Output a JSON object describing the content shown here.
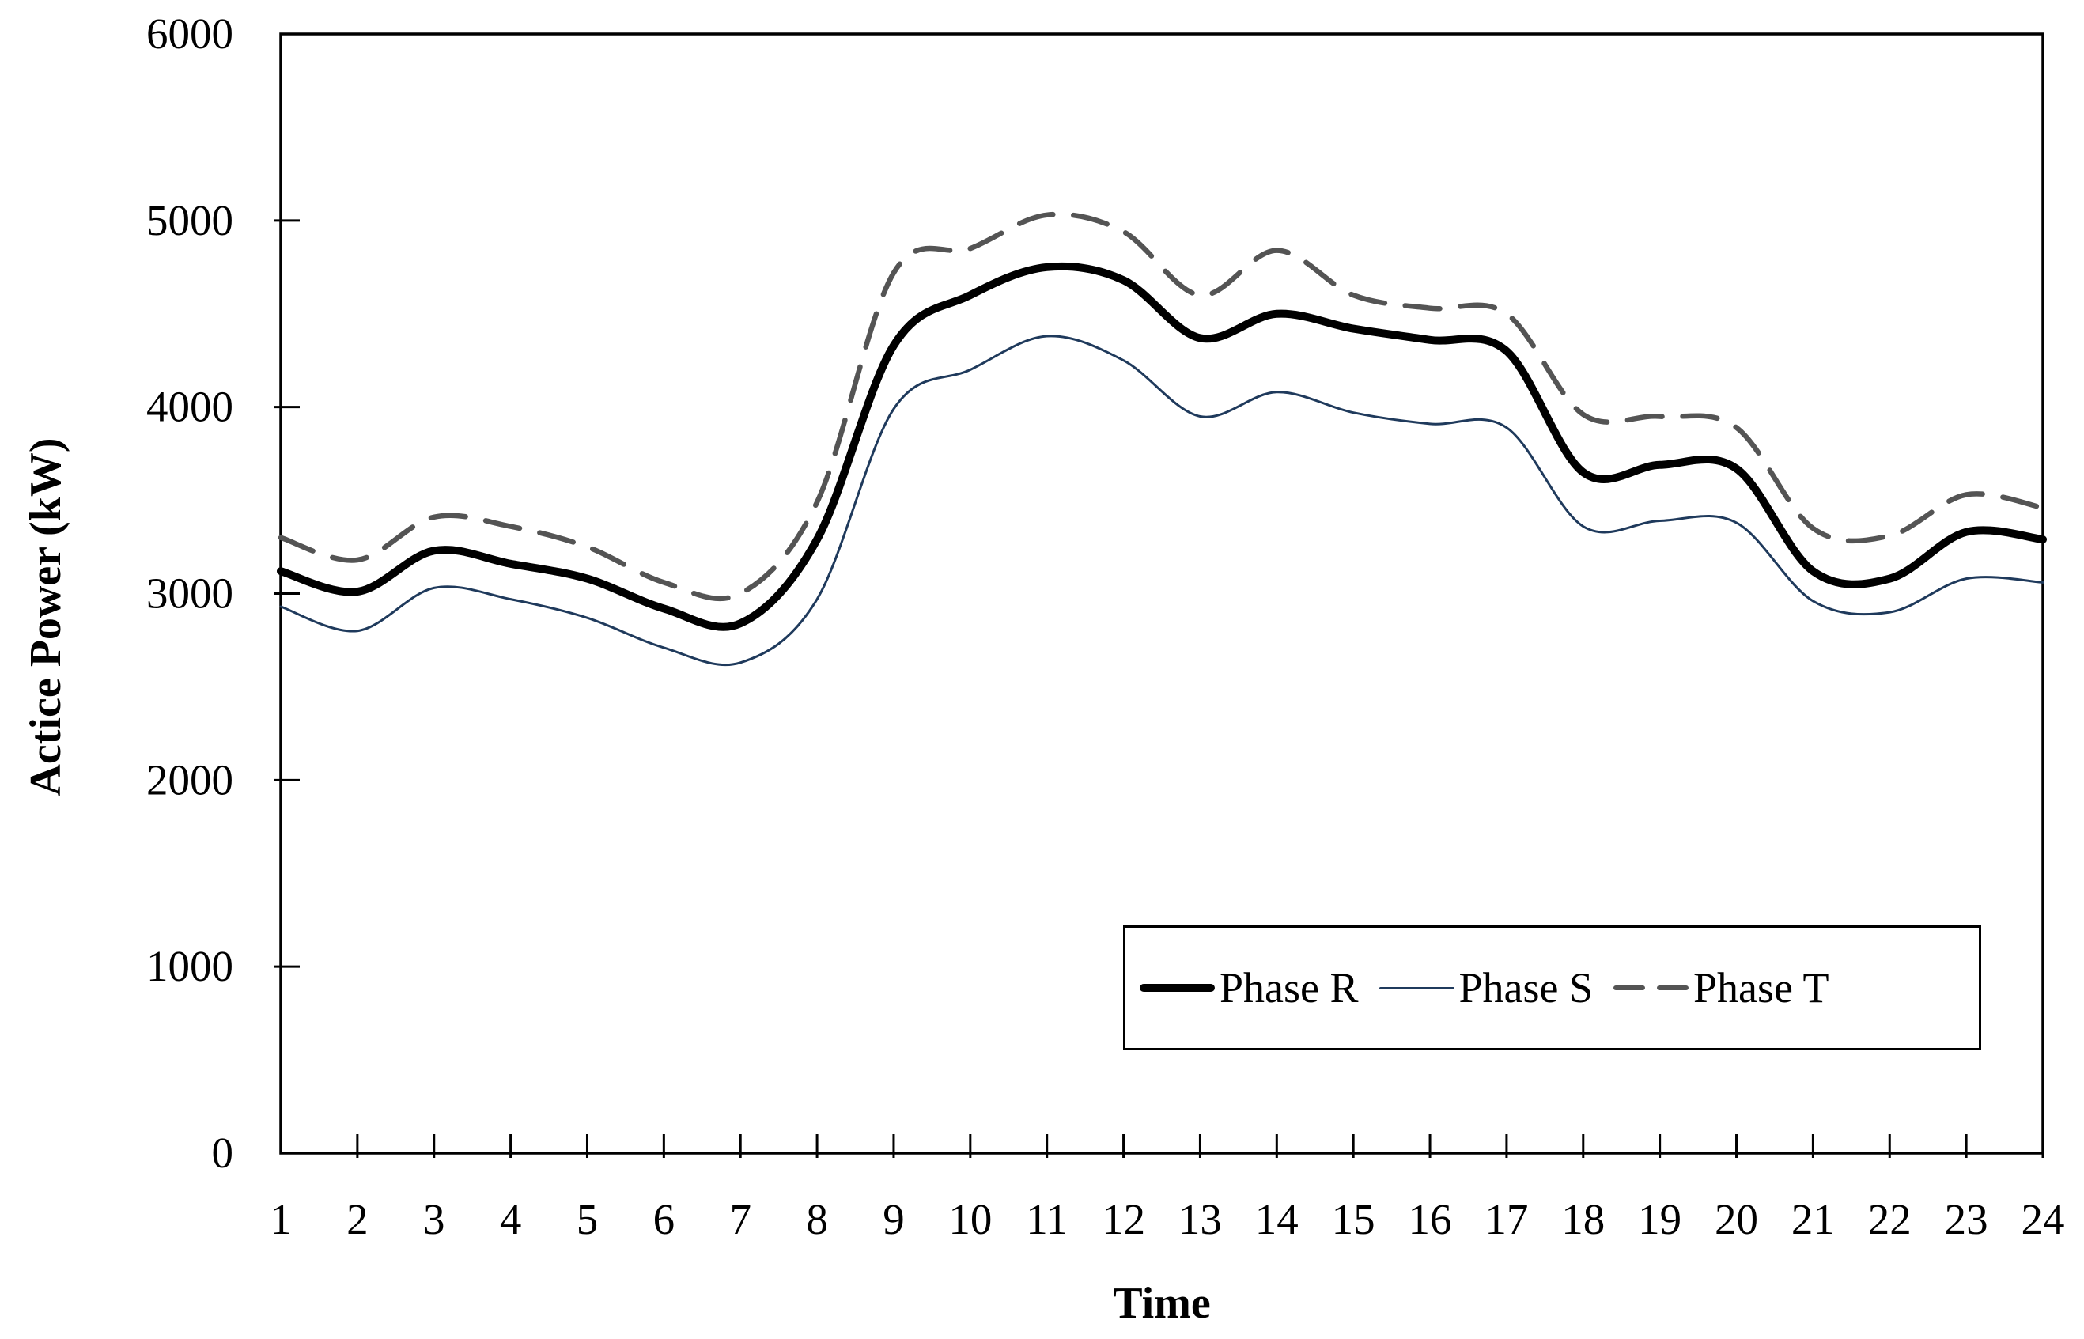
{
  "chart_data": {
    "type": "line",
    "title": "",
    "xlabel": "Time",
    "ylabel": "Actice Power (kW)",
    "x": [
      1,
      2,
      3,
      4,
      5,
      6,
      7,
      8,
      9,
      10,
      11,
      12,
      13,
      14,
      15,
      16,
      17,
      18,
      19,
      20,
      21,
      22,
      23,
      24
    ],
    "x_tick_labels": [
      "1",
      "2",
      "3",
      "4",
      "5",
      "6",
      "7",
      "8",
      "9",
      "10",
      "11",
      "12",
      "13",
      "14",
      "15",
      "16",
      "17",
      "18",
      "19",
      "20",
      "21",
      "22",
      "23",
      "24"
    ],
    "y_ticks": [
      0,
      1000,
      2000,
      3000,
      4000,
      5000,
      6000
    ],
    "y_tick_labels": [
      "0",
      "1000",
      "2000",
      "3000",
      "4000",
      "5000",
      "6000"
    ],
    "xlim": [
      1,
      24
    ],
    "ylim": [
      0,
      6000
    ],
    "grid": false,
    "legend_position": "inside-bottom-right",
    "line_smoothing": true,
    "series": [
      {
        "name": "Phase R",
        "color": "#000000",
        "width": 10,
        "dash": null,
        "values": [
          3120,
          3010,
          3230,
          3160,
          3080,
          2920,
          2840,
          3290,
          4330,
          4600,
          4750,
          4680,
          4370,
          4500,
          4420,
          4360,
          4300,
          3650,
          3690,
          3670,
          3120,
          3080,
          3330,
          3290
        ]
      },
      {
        "name": "Phase S",
        "color": "#1f3a5c",
        "width": 3,
        "dash": null,
        "values": [
          2930,
          2800,
          3030,
          2970,
          2870,
          2710,
          2630,
          2970,
          3990,
          4200,
          4380,
          4250,
          3950,
          4080,
          3970,
          3910,
          3890,
          3360,
          3390,
          3380,
          2960,
          2900,
          3080,
          3060
        ]
      },
      {
        "name": "Phase T",
        "color": "#545454",
        "width": 6.5,
        "dash": [
          44,
          26
        ],
        "values": [
          3300,
          3180,
          3410,
          3360,
          3250,
          3060,
          3000,
          3490,
          4720,
          4850,
          5030,
          4940,
          4600,
          4840,
          4600,
          4530,
          4500,
          3960,
          3950,
          3890,
          3350,
          3310,
          3530,
          3460
        ]
      }
    ]
  }
}
